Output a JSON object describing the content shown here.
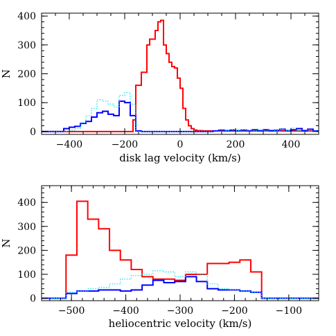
{
  "chart_data": [
    {
      "type": "histogram",
      "xlabel": "disk lag velocity (km/s)",
      "ylabel": "N",
      "xlim": [
        -500,
        500
      ],
      "ylim": [
        -10,
        410
      ],
      "xticks": [
        -400,
        -200,
        0,
        200,
        400
      ],
      "yticks": [
        0,
        100,
        200,
        300,
        400
      ],
      "bin_width": 20,
      "series": [
        {
          "style": "solid",
          "color": "#ff0000",
          "bin_edges": [
            -500,
            -170,
            -160,
            -140,
            -120,
            -110,
            -100,
            -90,
            -80,
            -70,
            -60,
            -50,
            -40,
            -30,
            -20,
            -10,
            0,
            10,
            20,
            30,
            40,
            50,
            60,
            80,
            100,
            120,
            140,
            500
          ],
          "values": [
            0,
            40,
            160,
            205,
            300,
            320,
            320,
            350,
            380,
            385,
            300,
            270,
            240,
            225,
            220,
            185,
            150,
            80,
            40,
            20,
            10,
            5,
            3,
            2,
            2,
            2,
            2
          ]
        },
        {
          "style": "solid",
          "color": "#0000ff",
          "bin_edges": [
            -500,
            -420,
            -400,
            -380,
            -360,
            -340,
            -320,
            -300,
            -280,
            -260,
            -240,
            -220,
            -200,
            -180,
            -160,
            -140,
            120,
            140,
            160,
            180,
            200,
            220,
            240,
            260,
            280,
            300,
            320,
            340,
            360,
            380,
            400,
            420,
            440,
            460,
            480,
            500
          ],
          "values": [
            0,
            10,
            15,
            18,
            28,
            35,
            50,
            65,
            70,
            60,
            55,
            105,
            100,
            55,
            2,
            0,
            2,
            5,
            3,
            5,
            3,
            5,
            3,
            6,
            3,
            6,
            3,
            4,
            8,
            3,
            6,
            10,
            3,
            8,
            2
          ]
        },
        {
          "style": "dotted",
          "color": "#00e5ee",
          "bin_edges": [
            -500,
            -400,
            -380,
            -360,
            -340,
            -320,
            -300,
            -280,
            -260,
            -240,
            -220,
            -200,
            -180,
            -160,
            140,
            160,
            180,
            200,
            220,
            240,
            260,
            280,
            300,
            320,
            340,
            360,
            380,
            400,
            420,
            440,
            460,
            480,
            500
          ],
          "values": [
            0,
            5,
            10,
            30,
            55,
            80,
            110,
            105,
            95,
            85,
            125,
            135,
            95,
            0,
            6,
            3,
            6,
            3,
            6,
            4,
            3,
            5,
            2,
            6,
            3,
            8,
            3,
            12,
            4,
            6,
            3,
            2
          ]
        }
      ]
    },
    {
      "type": "histogram",
      "xlabel": "heliocentric velocity (km/s)",
      "ylabel": "N",
      "xlim": [
        -555,
        -45
      ],
      "ylim": [
        -10,
        470
      ],
      "xticks": [
        -500,
        -400,
        -300,
        -200,
        -100
      ],
      "yticks": [
        0,
        100,
        200,
        300,
        400
      ],
      "bin_width": 20,
      "series": [
        {
          "style": "solid",
          "color": "#ff0000",
          "bin_edges": [
            -555,
            -510,
            -490,
            -470,
            -450,
            -430,
            -410,
            -390,
            -370,
            -350,
            -330,
            -310,
            -290,
            -270,
            -250,
            -230,
            -210,
            -190,
            -170,
            -150,
            -45
          ],
          "values": [
            0,
            180,
            405,
            330,
            290,
            200,
            160,
            120,
            90,
            80,
            80,
            75,
            100,
            100,
            145,
            145,
            150,
            160,
            110,
            0
          ]
        },
        {
          "style": "solid",
          "color": "#0000ff",
          "bin_edges": [
            -555,
            -510,
            -490,
            -470,
            -450,
            -430,
            -410,
            -390,
            -370,
            -350,
            -330,
            -310,
            -290,
            -270,
            -250,
            -230,
            -210,
            -190,
            -170,
            -150,
            -45
          ],
          "values": [
            0,
            20,
            30,
            30,
            35,
            35,
            30,
            35,
            55,
            75,
            65,
            70,
            90,
            70,
            40,
            35,
            35,
            30,
            25,
            0
          ]
        },
        {
          "style": "dotted",
          "color": "#00e5ee",
          "bin_edges": [
            -555,
            -510,
            -490,
            -470,
            -450,
            -430,
            -410,
            -390,
            -370,
            -350,
            -330,
            -310,
            -290,
            -270,
            -250,
            -230,
            -210,
            -190,
            -170,
            -150,
            -45
          ],
          "values": [
            0,
            25,
            30,
            40,
            45,
            60,
            80,
            95,
            100,
            115,
            110,
            90,
            110,
            100,
            60,
            40,
            35,
            30,
            25,
            0
          ]
        }
      ]
    }
  ]
}
